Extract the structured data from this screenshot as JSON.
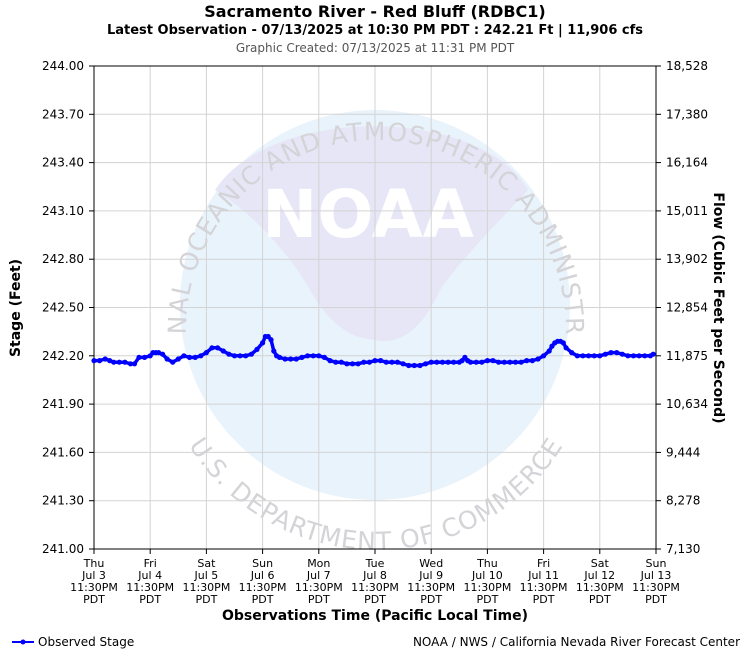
{
  "chart_data": {
    "type": "line",
    "title": "Sacramento River - Red Bluff (RDBC1)",
    "subtitle": "Latest Observation - 07/13/2025 at 10:30 PM PDT : 242.21 Ft | 11,906 cfs",
    "created": "Graphic Created: 07/13/2025 at 11:31 PM PDT",
    "ylabel": "Stage (Feet)",
    "y2label": "Flow (Cubic Feet per Second)",
    "xlabel": "Observations Time (Pacific Local Time)",
    "ylim": [
      241.0,
      244.0
    ],
    "xlim": [
      0,
      10
    ],
    "y_ticks": [
      "244.00",
      "243.70",
      "243.40",
      "243.10",
      "242.80",
      "242.50",
      "242.20",
      "241.90",
      "241.60",
      "241.30",
      "241.00"
    ],
    "y2_ticks": [
      "18,528",
      "17,380",
      "16,164",
      "15,011",
      "13,902",
      "12,854",
      "11,875",
      "10,634",
      "9,444",
      "8,278",
      "7,130"
    ],
    "x_ticks": [
      {
        "day": "Thu",
        "date": "Jul 3",
        "time": "11:30PM",
        "tz": "PDT"
      },
      {
        "day": "Fri",
        "date": "Jul 4",
        "time": "11:30PM",
        "tz": "PDT"
      },
      {
        "day": "Sat",
        "date": "Jul 5",
        "time": "11:30PM",
        "tz": "PDT"
      },
      {
        "day": "Sun",
        "date": "Jul 6",
        "time": "11:30PM",
        "tz": "PDT"
      },
      {
        "day": "Mon",
        "date": "Jul 7",
        "time": "11:30PM",
        "tz": "PDT"
      },
      {
        "day": "Tue",
        "date": "Jul 8",
        "time": "11:30PM",
        "tz": "PDT"
      },
      {
        "day": "Wed",
        "date": "Jul 9",
        "time": "11:30PM",
        "tz": "PDT"
      },
      {
        "day": "Thu",
        "date": "Jul 10",
        "time": "11:30PM",
        "tz": "PDT"
      },
      {
        "day": "Fri",
        "date": "Jul 11",
        "time": "11:30PM",
        "tz": "PDT"
      },
      {
        "day": "Sat",
        "date": "Jul 12",
        "time": "11:30PM",
        "tz": "PDT"
      },
      {
        "day": "Sun",
        "date": "Jul 13",
        "time": "11:30PM",
        "tz": "PDT"
      }
    ],
    "grid": true,
    "legend": "bottom-left",
    "series": [
      {
        "name": "Observed Stage",
        "color": "#0000ff",
        "x": [
          0,
          0.1,
          0.2,
          0.28,
          0.35,
          0.45,
          0.55,
          0.65,
          0.72,
          0.8,
          0.9,
          1.0,
          1.05,
          1.1,
          1.15,
          1.22,
          1.3,
          1.4,
          1.5,
          1.6,
          1.7,
          1.8,
          1.9,
          2.0,
          2.1,
          2.2,
          2.3,
          2.4,
          2.5,
          2.6,
          2.7,
          2.8,
          2.9,
          3.0,
          3.05,
          3.1,
          3.15,
          3.2,
          3.25,
          3.3,
          3.4,
          3.5,
          3.6,
          3.7,
          3.8,
          3.9,
          4.0,
          4.1,
          4.2,
          4.3,
          4.4,
          4.5,
          4.6,
          4.7,
          4.8,
          4.9,
          5.0,
          5.1,
          5.2,
          5.3,
          5.4,
          5.5,
          5.6,
          5.7,
          5.8,
          5.9,
          6.0,
          6.1,
          6.2,
          6.3,
          6.4,
          6.5,
          6.55,
          6.6,
          6.65,
          6.7,
          6.8,
          6.9,
          7.0,
          7.1,
          7.2,
          7.3,
          7.4,
          7.5,
          7.6,
          7.7,
          7.8,
          7.9,
          8.0,
          8.1,
          8.15,
          8.2,
          8.25,
          8.3,
          8.35,
          8.4,
          8.5,
          8.6,
          8.7,
          8.8,
          8.9,
          9.0,
          9.1,
          9.2,
          9.3,
          9.4,
          9.5,
          9.6,
          9.7,
          9.8,
          9.9,
          9.95
        ],
        "values": [
          242.17,
          242.17,
          242.18,
          242.17,
          242.16,
          242.16,
          242.16,
          242.15,
          242.15,
          242.19,
          242.19,
          242.2,
          242.22,
          242.22,
          242.22,
          242.21,
          242.18,
          242.16,
          242.18,
          242.2,
          242.19,
          242.19,
          242.2,
          242.22,
          242.25,
          242.25,
          242.23,
          242.21,
          242.2,
          242.2,
          242.2,
          242.21,
          242.24,
          242.28,
          242.32,
          242.32,
          242.3,
          242.23,
          242.2,
          242.19,
          242.18,
          242.18,
          242.18,
          242.19,
          242.2,
          242.2,
          242.2,
          242.19,
          242.17,
          242.16,
          242.16,
          242.15,
          242.15,
          242.15,
          242.16,
          242.16,
          242.17,
          242.17,
          242.16,
          242.16,
          242.16,
          242.15,
          242.14,
          242.14,
          242.14,
          242.15,
          242.16,
          242.16,
          242.16,
          242.16,
          242.16,
          242.16,
          242.17,
          242.19,
          242.17,
          242.16,
          242.16,
          242.16,
          242.17,
          242.17,
          242.16,
          242.16,
          242.16,
          242.16,
          242.16,
          242.17,
          242.17,
          242.18,
          242.2,
          242.23,
          242.26,
          242.28,
          242.29,
          242.29,
          242.28,
          242.25,
          242.22,
          242.2,
          242.2,
          242.2,
          242.2,
          242.2,
          242.21,
          242.22,
          242.22,
          242.21,
          242.2,
          242.2,
          242.2,
          242.2,
          242.2,
          242.21
        ]
      }
    ]
  },
  "footer": {
    "legend_label": "Observed Stage",
    "credit": "NOAA / NWS / California Nevada River Forecast Center"
  },
  "watermark": {
    "logo_text": "NOAA",
    "ring_top": "NATIONAL OCEANIC AND ATMOSPHERIC ADMINISTRATION",
    "ring_bottom": "U.S. DEPARTMENT OF COMMERCE"
  },
  "colors": {
    "line": "#0000ff",
    "grid": "#d3d3d3",
    "watermark_light": "#e9f3fb",
    "watermark_dark": "#e6e6f7"
  }
}
